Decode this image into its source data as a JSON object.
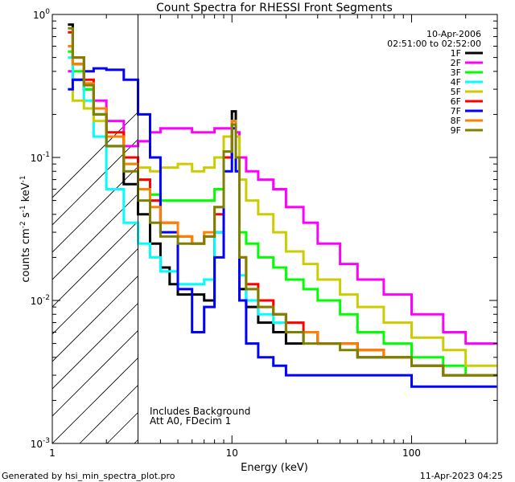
{
  "chart_data": {
    "type": "line",
    "title": "Count Spectra for RHESSI Front Segments",
    "xlabel": "Energy (keV)",
    "ylabel": "counts cm",
    "ylabel_parts": {
      "base": "counts cm",
      "exp1": "-2",
      "mid1": " s",
      "exp2": "-1",
      "mid2": " keV",
      "exp3": "-1"
    },
    "x_scale": "log",
    "y_scale": "log",
    "xlim": [
      1,
      300
    ],
    "ylim": [
      0.001,
      1
    ],
    "x_tick_labels": [
      {
        "value": 1,
        "label": "1"
      },
      {
        "value": 10,
        "label": "10"
      },
      {
        "value": 100,
        "label": "100"
      }
    ],
    "y_tick_labels": [
      {
        "value": 0.001,
        "base": "10",
        "exp": "-3"
      },
      {
        "value": 0.01,
        "base": "10",
        "exp": "-2"
      },
      {
        "value": 0.1,
        "base": "10",
        "exp": "-1"
      },
      {
        "value": 1,
        "base": "10",
        "exp": "0"
      }
    ],
    "hatched_region": {
      "x_range": [
        1,
        3
      ]
    },
    "date_label": "10-Apr-2006",
    "time_range_label": "02:51:00 to 02:52:00",
    "annotations": [
      "Includes Background",
      "Att A0, FDecim 1"
    ],
    "series": [
      {
        "name": "1F",
        "color": "#000000",
        "points": [
          [
            1.3,
            0.85
          ],
          [
            1.5,
            0.45
          ],
          [
            1.7,
            0.3
          ],
          [
            2.0,
            0.2
          ],
          [
            2.5,
            0.12
          ],
          [
            3,
            0.065
          ],
          [
            3.5,
            0.04
          ],
          [
            4,
            0.025
          ],
          [
            4.5,
            0.017
          ],
          [
            5,
            0.013
          ],
          [
            6,
            0.011
          ],
          [
            7,
            0.011
          ],
          [
            8,
            0.01
          ],
          [
            9,
            0.03
          ],
          [
            10,
            0.1
          ],
          [
            10.5,
            0.21
          ],
          [
            11,
            0.1
          ],
          [
            12,
            0.012
          ],
          [
            14,
            0.009
          ],
          [
            17,
            0.007
          ],
          [
            20,
            0.006
          ],
          [
            25,
            0.005
          ],
          [
            30,
            0.006
          ],
          [
            40,
            0.005
          ],
          [
            50,
            0.005
          ],
          [
            70,
            0.004
          ],
          [
            100,
            0.004
          ],
          [
            150,
            0.0035
          ],
          [
            200,
            0.003
          ],
          [
            280,
            0.003
          ]
        ]
      },
      {
        "name": "2F",
        "color": "#ff00ff",
        "points": [
          [
            1.3,
            0.4
          ],
          [
            1.5,
            0.35
          ],
          [
            1.7,
            0.3
          ],
          [
            2.0,
            0.25
          ],
          [
            2.5,
            0.18
          ],
          [
            3,
            0.12
          ],
          [
            3.5,
            0.13
          ],
          [
            4,
            0.15
          ],
          [
            5,
            0.16
          ],
          [
            6,
            0.16
          ],
          [
            7,
            0.15
          ],
          [
            8,
            0.15
          ],
          [
            9,
            0.16
          ],
          [
            10,
            0.16
          ],
          [
            10.5,
            0.17
          ],
          [
            11,
            0.15
          ],
          [
            12,
            0.1
          ],
          [
            14,
            0.08
          ],
          [
            17,
            0.07
          ],
          [
            20,
            0.06
          ],
          [
            25,
            0.045
          ],
          [
            30,
            0.035
          ],
          [
            40,
            0.025
          ],
          [
            50,
            0.018
          ],
          [
            70,
            0.014
          ],
          [
            100,
            0.011
          ],
          [
            150,
            0.008
          ],
          [
            200,
            0.006
          ],
          [
            280,
            0.005
          ]
        ]
      },
      {
        "name": "3F",
        "color": "#00ff00",
        "points": [
          [
            1.3,
            0.55
          ],
          [
            1.5,
            0.4
          ],
          [
            1.7,
            0.3
          ],
          [
            2.0,
            0.2
          ],
          [
            2.5,
            0.14
          ],
          [
            3,
            0.09
          ],
          [
            3.5,
            0.07
          ],
          [
            4,
            0.055
          ],
          [
            5,
            0.05
          ],
          [
            6,
            0.05
          ],
          [
            7,
            0.05
          ],
          [
            8,
            0.05
          ],
          [
            9,
            0.06
          ],
          [
            10,
            0.1
          ],
          [
            10.5,
            0.17
          ],
          [
            11,
            0.1
          ],
          [
            12,
            0.03
          ],
          [
            14,
            0.025
          ],
          [
            17,
            0.02
          ],
          [
            20,
            0.017
          ],
          [
            25,
            0.014
          ],
          [
            30,
            0.012
          ],
          [
            40,
            0.01
          ],
          [
            50,
            0.008
          ],
          [
            70,
            0.006
          ],
          [
            100,
            0.005
          ],
          [
            150,
            0.004
          ],
          [
            200,
            0.0035
          ],
          [
            280,
            0.003
          ]
        ]
      },
      {
        "name": "4F",
        "color": "#00ffff",
        "points": [
          [
            1.3,
            0.5
          ],
          [
            1.5,
            0.35
          ],
          [
            1.7,
            0.25
          ],
          [
            2.0,
            0.14
          ],
          [
            2.5,
            0.06
          ],
          [
            3,
            0.035
          ],
          [
            3.5,
            0.025
          ],
          [
            4,
            0.02
          ],
          [
            5,
            0.016
          ],
          [
            6,
            0.013
          ],
          [
            7,
            0.013
          ],
          [
            8,
            0.014
          ],
          [
            9,
            0.03
          ],
          [
            10,
            0.1
          ],
          [
            10.5,
            0.18
          ],
          [
            11,
            0.1
          ],
          [
            12,
            0.015
          ],
          [
            14,
            0.01
          ],
          [
            17,
            0.008
          ],
          [
            20,
            0.007
          ],
          [
            25,
            0.006
          ],
          [
            30,
            0.006
          ],
          [
            40,
            0.005
          ],
          [
            50,
            0.005
          ],
          [
            70,
            0.0045
          ],
          [
            100,
            0.004
          ],
          [
            150,
            0.0035
          ],
          [
            200,
            0.003
          ],
          [
            280,
            0.003
          ]
        ]
      },
      {
        "name": "5F",
        "color": "#cccc00",
        "points": [
          [
            1.3,
            0.3
          ],
          [
            1.5,
            0.25
          ],
          [
            1.7,
            0.22
          ],
          [
            2.0,
            0.18
          ],
          [
            2.5,
            0.14
          ],
          [
            3,
            0.1
          ],
          [
            3.5,
            0.085
          ],
          [
            4,
            0.08
          ],
          [
            5,
            0.085
          ],
          [
            6,
            0.09
          ],
          [
            7,
            0.08
          ],
          [
            8,
            0.085
          ],
          [
            9,
            0.1
          ],
          [
            10,
            0.14
          ],
          [
            10.5,
            0.18
          ],
          [
            11,
            0.14
          ],
          [
            12,
            0.07
          ],
          [
            14,
            0.05
          ],
          [
            17,
            0.04
          ],
          [
            20,
            0.03
          ],
          [
            25,
            0.022
          ],
          [
            30,
            0.018
          ],
          [
            40,
            0.014
          ],
          [
            50,
            0.011
          ],
          [
            70,
            0.009
          ],
          [
            100,
            0.007
          ],
          [
            150,
            0.0055
          ],
          [
            200,
            0.0045
          ],
          [
            280,
            0.0035
          ]
        ]
      },
      {
        "name": "6F",
        "color": "#ff0000",
        "points": [
          [
            1.3,
            0.75
          ],
          [
            1.5,
            0.5
          ],
          [
            1.7,
            0.35
          ],
          [
            2.0,
            0.22
          ],
          [
            2.5,
            0.15
          ],
          [
            3,
            0.1
          ],
          [
            3.5,
            0.07
          ],
          [
            4,
            0.05
          ],
          [
            5,
            0.035
          ],
          [
            6,
            0.028
          ],
          [
            7,
            0.025
          ],
          [
            8,
            0.028
          ],
          [
            9,
            0.04
          ],
          [
            10,
            0.1
          ],
          [
            10.5,
            0.17
          ],
          [
            11,
            0.1
          ],
          [
            12,
            0.02
          ],
          [
            14,
            0.013
          ],
          [
            17,
            0.01
          ],
          [
            20,
            0.008
          ],
          [
            25,
            0.007
          ],
          [
            30,
            0.006
          ],
          [
            40,
            0.005
          ],
          [
            50,
            0.005
          ],
          [
            70,
            0.0045
          ],
          [
            100,
            0.004
          ],
          [
            150,
            0.0035
          ],
          [
            200,
            0.003
          ],
          [
            280,
            0.003
          ]
        ]
      },
      {
        "name": "7F",
        "color": "#0000ff",
        "points": [
          [
            1.3,
            0.3
          ],
          [
            1.5,
            0.35
          ],
          [
            1.7,
            0.4
          ],
          [
            2.0,
            0.42
          ],
          [
            2.5,
            0.41
          ],
          [
            3,
            0.35
          ],
          [
            3.5,
            0.2
          ],
          [
            4,
            0.1
          ],
          [
            5,
            0.03
          ],
          [
            6,
            0.012
          ],
          [
            7,
            0.006
          ],
          [
            8,
            0.009
          ],
          [
            9,
            0.02
          ],
          [
            10,
            0.08
          ],
          [
            10.5,
            0.16
          ],
          [
            11,
            0.08
          ],
          [
            12,
            0.01
          ],
          [
            14,
            0.005
          ],
          [
            17,
            0.004
          ],
          [
            20,
            0.0035
          ],
          [
            25,
            0.003
          ],
          [
            30,
            0.003
          ],
          [
            40,
            0.003
          ],
          [
            50,
            0.003
          ],
          [
            70,
            0.003
          ],
          [
            100,
            0.003
          ],
          [
            150,
            0.0025
          ],
          [
            200,
            0.0025
          ],
          [
            280,
            0.0025
          ]
        ]
      },
      {
        "name": "8F",
        "color": "#ff8000",
        "points": [
          [
            1.3,
            0.6
          ],
          [
            1.5,
            0.45
          ],
          [
            1.7,
            0.33
          ],
          [
            2.0,
            0.22
          ],
          [
            2.5,
            0.14
          ],
          [
            3,
            0.09
          ],
          [
            3.5,
            0.06
          ],
          [
            4,
            0.045
          ],
          [
            5,
            0.035
          ],
          [
            6,
            0.028
          ],
          [
            7,
            0.025
          ],
          [
            8,
            0.03
          ],
          [
            9,
            0.045
          ],
          [
            10,
            0.11
          ],
          [
            10.5,
            0.18
          ],
          [
            11,
            0.1
          ],
          [
            12,
            0.02
          ],
          [
            14,
            0.012
          ],
          [
            17,
            0.009
          ],
          [
            20,
            0.008
          ],
          [
            25,
            0.006
          ],
          [
            30,
            0.006
          ],
          [
            40,
            0.005
          ],
          [
            50,
            0.005
          ],
          [
            70,
            0.0045
          ],
          [
            100,
            0.004
          ],
          [
            150,
            0.0035
          ],
          [
            200,
            0.003
          ],
          [
            280,
            0.003
          ]
        ]
      },
      {
        "name": "9F",
        "color": "#808000",
        "points": [
          [
            1.3,
            0.8
          ],
          [
            1.5,
            0.5
          ],
          [
            1.7,
            0.32
          ],
          [
            2.0,
            0.2
          ],
          [
            2.5,
            0.12
          ],
          [
            3,
            0.08
          ],
          [
            3.5,
            0.05
          ],
          [
            4,
            0.035
          ],
          [
            5,
            0.028
          ],
          [
            6,
            0.025
          ],
          [
            7,
            0.025
          ],
          [
            8,
            0.028
          ],
          [
            9,
            0.045
          ],
          [
            10,
            0.11
          ],
          [
            10.5,
            0.17
          ],
          [
            11,
            0.1
          ],
          [
            12,
            0.02
          ],
          [
            14,
            0.012
          ],
          [
            17,
            0.009
          ],
          [
            20,
            0.008
          ],
          [
            25,
            0.006
          ],
          [
            30,
            0.005
          ],
          [
            40,
            0.005
          ],
          [
            50,
            0.0045
          ],
          [
            70,
            0.004
          ],
          [
            100,
            0.004
          ],
          [
            150,
            0.0035
          ],
          [
            200,
            0.003
          ],
          [
            280,
            0.003
          ]
        ]
      }
    ]
  },
  "footer": {
    "left": "Generated by hsi_min_spectra_plot.pro",
    "right": "11-Apr-2023 04:25"
  }
}
